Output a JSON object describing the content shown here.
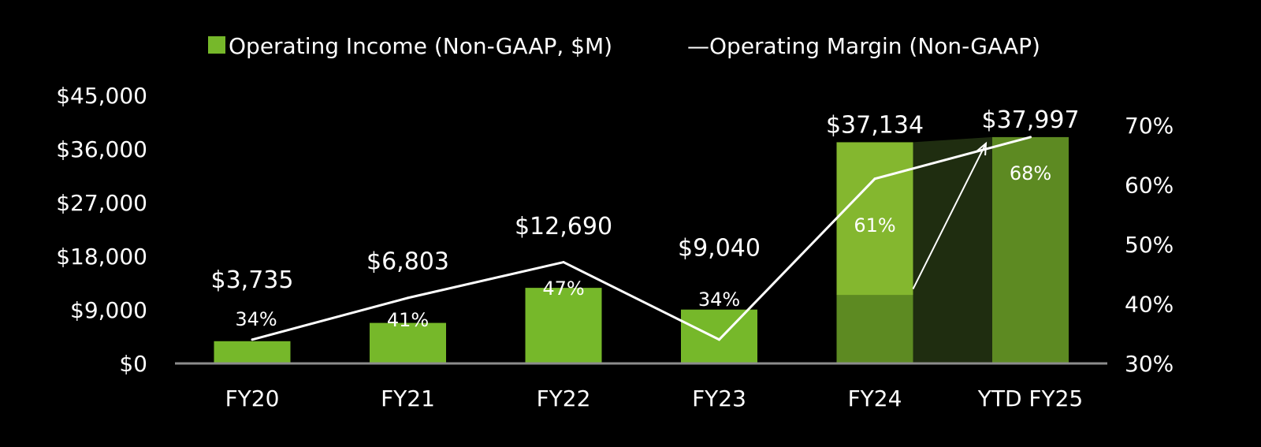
{
  "colors": {
    "background": "#000000",
    "bar": "#76b82a",
    "bar_light": "#84b72f",
    "bar_dark": "#5d8a22",
    "shadow": "#1f2d10",
    "line": "#ffffff",
    "axis": "#8c8c8c"
  },
  "legend": {
    "bar_label": "Operating Income (Non-GAAP, $M)",
    "line_label": "Operating Margin (Non-GAAP)",
    "line_glyph": "—"
  },
  "chart_data": {
    "type": "bar",
    "categories": [
      "FY20",
      "FY21",
      "FY22",
      "FY23",
      "FY24",
      "YTD FY25"
    ],
    "series": [
      {
        "name": "Operating Income (Non-GAAP, $M)",
        "type": "bar",
        "axis": "left",
        "values": [
          3735,
          6803,
          12690,
          9040,
          37134,
          37997
        ],
        "value_labels": [
          "$3,735",
          "$6,803",
          "$12,690",
          "$9,040",
          "$37,134",
          "$37,997"
        ]
      },
      {
        "name": "Operating Margin (Non-GAAP)",
        "type": "line",
        "axis": "right",
        "values": [
          34,
          41,
          47,
          34,
          61,
          68
        ],
        "value_labels": [
          "34%",
          "41%",
          "47%",
          "34%",
          "61%",
          "68%"
        ]
      }
    ],
    "y_left": {
      "ylim": [
        0,
        45000
      ],
      "ticks": [
        0,
        9000,
        18000,
        27000,
        36000,
        45000
      ],
      "tick_labels": [
        "$0",
        "$9,000",
        "$18,000",
        "$27,000",
        "$36,000",
        "$45,000"
      ]
    },
    "y_right": {
      "ylim": [
        30,
        75
      ],
      "ticks": [
        30,
        40,
        50,
        60,
        70
      ],
      "tick_labels": [
        "30%",
        "40%",
        "50%",
        "60%",
        "70%"
      ]
    },
    "legend_position": "top-center",
    "grid": false
  }
}
